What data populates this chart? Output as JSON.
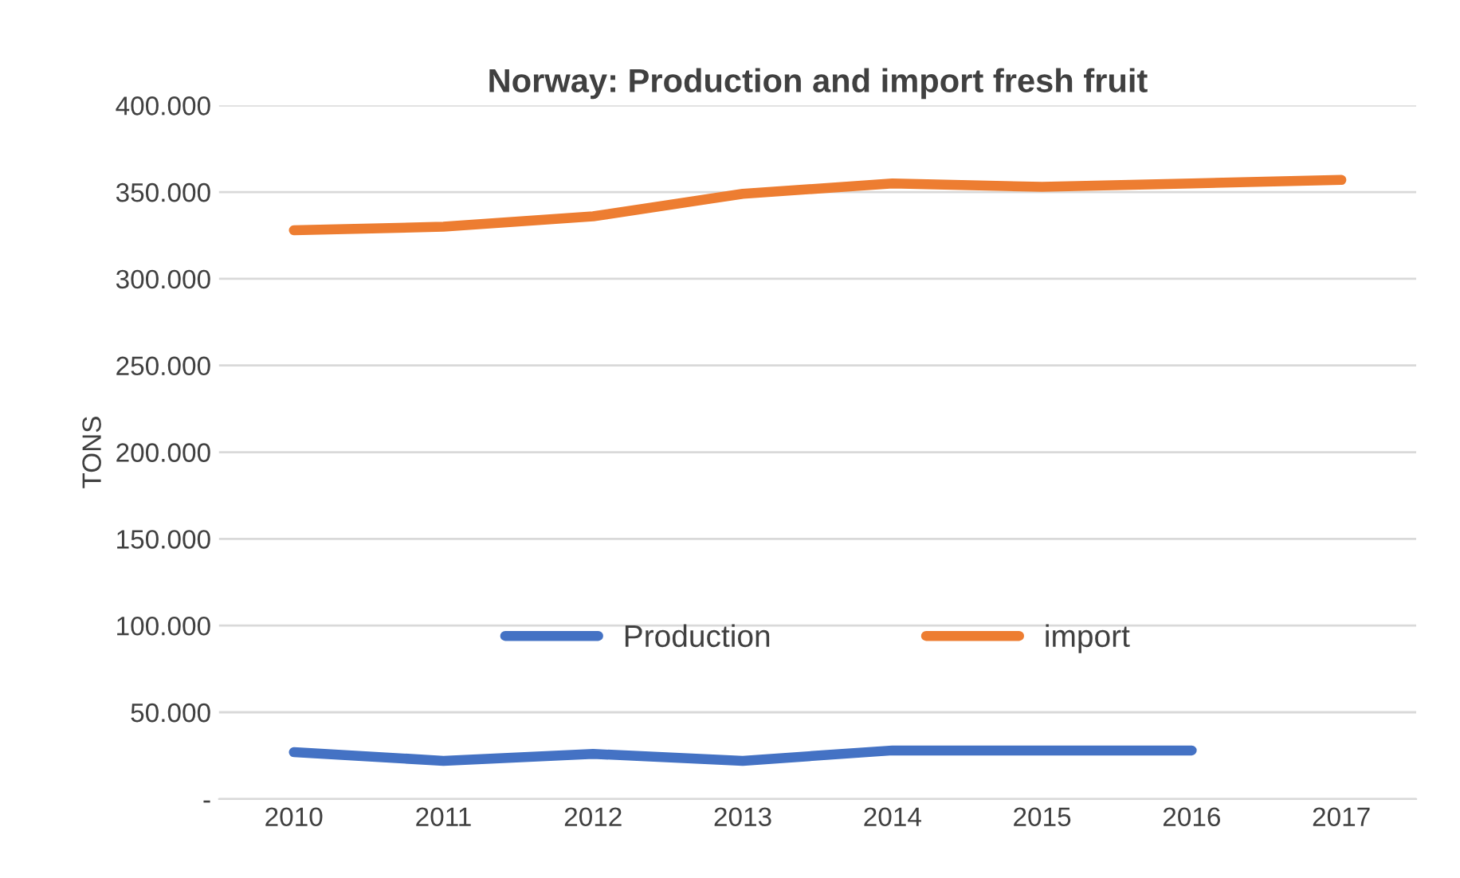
{
  "chart_data": {
    "type": "line",
    "title": "Norway: Production and import fresh fruit",
    "ylabel": "TONS",
    "categories": [
      "2010",
      "2011",
      "2012",
      "2013",
      "2014",
      "2015",
      "2016",
      "2017"
    ],
    "series": [
      {
        "name": "Production",
        "color": "#4472c4",
        "values": [
          27000,
          22000,
          26000,
          22000,
          28000,
          28000,
          28000,
          null
        ]
      },
      {
        "name": "import",
        "color": "#ed7d31",
        "values": [
          328000,
          330000,
          336000,
          349000,
          355000,
          353000,
          355000,
          357000
        ]
      }
    ],
    "ylim": [
      0,
      400000
    ],
    "yticks": [
      {
        "value": 0,
        "label": "-"
      },
      {
        "value": 50000,
        "label": "50.000"
      },
      {
        "value": 100000,
        "label": "100.000"
      },
      {
        "value": 150000,
        "label": "150.000"
      },
      {
        "value": 200000,
        "label": "200.000"
      },
      {
        "value": 250000,
        "label": "250.000"
      },
      {
        "value": 300000,
        "label": "300.000"
      },
      {
        "value": 350000,
        "label": "350.000"
      },
      {
        "value": 400000,
        "label": "400.000"
      }
    ],
    "grid": "y",
    "legend": "bottom",
    "line_style": "solid"
  }
}
